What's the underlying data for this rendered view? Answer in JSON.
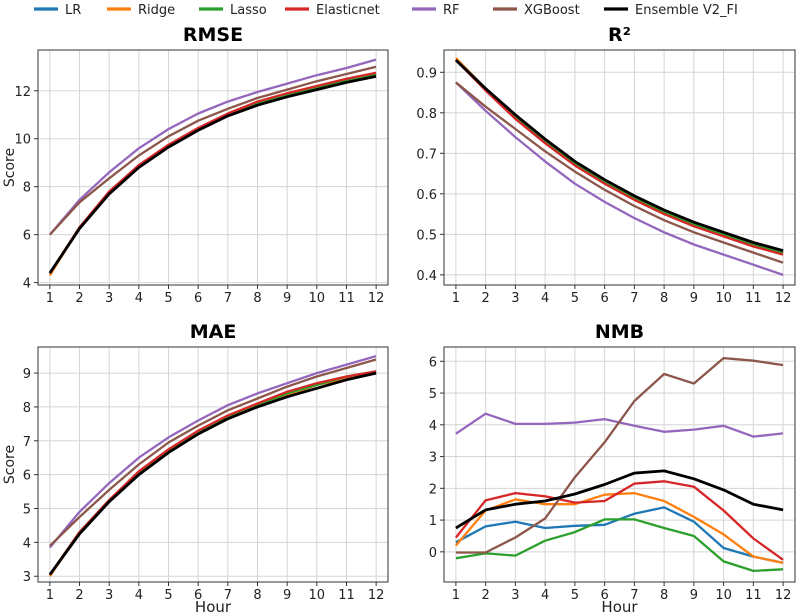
{
  "legend": [
    {
      "name": "LR",
      "color": "#1f77b4"
    },
    {
      "name": "Ridge",
      "color": "#ff7f0e"
    },
    {
      "name": "Lasso",
      "color": "#2ca02c"
    },
    {
      "name": "Elasticnet",
      "color": "#d62728"
    },
    {
      "name": "RF",
      "color": "#9467bd"
    },
    {
      "name": "XGBoost",
      "color": "#8c564b"
    },
    {
      "name": "Ensemble V2_FI",
      "color": "#000000"
    }
  ],
  "chart_data": [
    {
      "type": "line",
      "title": "RMSE",
      "xlabel": "",
      "ylabel": "Score",
      "x": [
        1,
        2,
        3,
        4,
        5,
        6,
        7,
        8,
        9,
        10,
        11,
        12
      ],
      "xlim": [
        0.6,
        12.4
      ],
      "ylim": [
        3.9,
        13.7
      ],
      "yticks": [
        4,
        6,
        8,
        10,
        12
      ],
      "grid": true,
      "series": [
        {
          "name": "LR",
          "values": [
            4.35,
            6.3,
            7.75,
            8.85,
            9.7,
            10.4,
            11.0,
            11.5,
            11.85,
            12.15,
            12.45,
            12.7
          ]
        },
        {
          "name": "Ridge",
          "values": [
            4.3,
            6.3,
            7.75,
            8.85,
            9.7,
            10.4,
            11.0,
            11.5,
            11.85,
            12.15,
            12.45,
            12.7
          ]
        },
        {
          "name": "Lasso",
          "values": [
            4.4,
            6.3,
            7.75,
            8.85,
            9.7,
            10.4,
            11.0,
            11.5,
            11.85,
            12.15,
            12.45,
            12.7
          ]
        },
        {
          "name": "Elasticnet",
          "values": [
            4.4,
            6.3,
            7.8,
            8.9,
            9.75,
            10.45,
            11.05,
            11.55,
            11.9,
            12.2,
            12.5,
            12.75
          ]
        },
        {
          "name": "RF",
          "values": [
            6.0,
            7.45,
            8.6,
            9.6,
            10.4,
            11.05,
            11.55,
            11.95,
            12.3,
            12.65,
            12.95,
            13.3
          ]
        },
        {
          "name": "XGBoost",
          "values": [
            6.0,
            7.35,
            8.35,
            9.3,
            10.1,
            10.75,
            11.25,
            11.7,
            12.05,
            12.4,
            12.7,
            13.0
          ]
        },
        {
          "name": "Ensemble V2_FI",
          "values": [
            4.4,
            6.25,
            7.7,
            8.8,
            9.65,
            10.35,
            10.95,
            11.4,
            11.75,
            12.05,
            12.35,
            12.6
          ]
        }
      ]
    },
    {
      "type": "line",
      "title": "R²",
      "xlabel": "",
      "ylabel": "",
      "x": [
        1,
        2,
        3,
        4,
        5,
        6,
        7,
        8,
        9,
        10,
        11,
        12
      ],
      "xlim": [
        0.6,
        12.4
      ],
      "ylim": [
        0.375,
        0.955
      ],
      "yticks": [
        0.4,
        0.5,
        0.6,
        0.7,
        0.8,
        0.9
      ],
      "grid": true,
      "series": [
        {
          "name": "LR",
          "values": [
            0.93,
            0.86,
            0.79,
            0.73,
            0.675,
            0.63,
            0.59,
            0.555,
            0.525,
            0.5,
            0.475,
            0.455
          ]
        },
        {
          "name": "Ridge",
          "values": [
            0.935,
            0.86,
            0.79,
            0.73,
            0.675,
            0.63,
            0.59,
            0.555,
            0.525,
            0.5,
            0.475,
            0.455
          ]
        },
        {
          "name": "Lasso",
          "values": [
            0.93,
            0.86,
            0.79,
            0.73,
            0.675,
            0.63,
            0.59,
            0.555,
            0.525,
            0.5,
            0.475,
            0.455
          ]
        },
        {
          "name": "Elasticnet",
          "values": [
            0.93,
            0.855,
            0.785,
            0.725,
            0.67,
            0.625,
            0.585,
            0.55,
            0.52,
            0.495,
            0.47,
            0.45
          ]
        },
        {
          "name": "RF",
          "values": [
            0.875,
            0.805,
            0.74,
            0.68,
            0.625,
            0.58,
            0.54,
            0.505,
            0.475,
            0.45,
            0.425,
            0.4
          ]
        },
        {
          "name": "XGBoost",
          "values": [
            0.875,
            0.815,
            0.76,
            0.705,
            0.655,
            0.61,
            0.57,
            0.535,
            0.505,
            0.48,
            0.455,
            0.43
          ]
        },
        {
          "name": "Ensemble V2_FI",
          "values": [
            0.93,
            0.86,
            0.795,
            0.735,
            0.68,
            0.635,
            0.595,
            0.56,
            0.53,
            0.505,
            0.48,
            0.46
          ]
        }
      ]
    },
    {
      "type": "line",
      "title": "MAE",
      "xlabel": "Hour",
      "ylabel": "Score",
      "x": [
        1,
        2,
        3,
        4,
        5,
        6,
        7,
        8,
        9,
        10,
        11,
        12
      ],
      "xlim": [
        0.6,
        12.4
      ],
      "ylim": [
        2.83,
        9.77
      ],
      "yticks": [
        3,
        4,
        5,
        6,
        7,
        8,
        9
      ],
      "grid": true,
      "series": [
        {
          "name": "LR",
          "values": [
            3.05,
            4.3,
            5.25,
            6.05,
            6.7,
            7.25,
            7.7,
            8.05,
            8.35,
            8.65,
            8.85,
            9.05
          ]
        },
        {
          "name": "Ridge",
          "values": [
            3.0,
            4.3,
            5.25,
            6.05,
            6.7,
            7.25,
            7.7,
            8.05,
            8.35,
            8.65,
            8.85,
            9.05
          ]
        },
        {
          "name": "Lasso",
          "values": [
            3.05,
            4.3,
            5.25,
            6.05,
            6.7,
            7.25,
            7.7,
            8.05,
            8.4,
            8.65,
            8.9,
            9.05
          ]
        },
        {
          "name": "Elasticnet",
          "values": [
            3.05,
            4.3,
            5.25,
            6.1,
            6.75,
            7.3,
            7.75,
            8.1,
            8.45,
            8.7,
            8.9,
            9.05
          ]
        },
        {
          "name": "RF",
          "values": [
            3.85,
            4.9,
            5.75,
            6.5,
            7.1,
            7.6,
            8.05,
            8.4,
            8.7,
            9.0,
            9.25,
            9.5
          ]
        },
        {
          "name": "XGBoost",
          "values": [
            3.9,
            4.75,
            5.55,
            6.3,
            6.95,
            7.45,
            7.9,
            8.25,
            8.6,
            8.9,
            9.15,
            9.4
          ]
        },
        {
          "name": "Ensemble V2_FI",
          "values": [
            3.05,
            4.25,
            5.2,
            6.0,
            6.65,
            7.2,
            7.65,
            8.0,
            8.3,
            8.55,
            8.8,
            9.0
          ]
        }
      ]
    },
    {
      "type": "line",
      "title": "NMB",
      "xlabel": "Hour",
      "ylabel": "",
      "x": [
        1,
        2,
        3,
        4,
        5,
        6,
        7,
        8,
        9,
        10,
        11,
        12
      ],
      "xlim": [
        0.6,
        12.4
      ],
      "ylim": [
        -0.95,
        6.45
      ],
      "yticks": [
        0,
        1,
        2,
        3,
        4,
        5,
        6
      ],
      "grid": true,
      "series": [
        {
          "name": "LR",
          "values": [
            0.3,
            0.8,
            0.95,
            0.75,
            0.82,
            0.85,
            1.2,
            1.4,
            0.95,
            0.12,
            -0.15,
            -0.35
          ]
        },
        {
          "name": "Ridge",
          "values": [
            0.2,
            1.3,
            1.65,
            1.5,
            1.5,
            1.8,
            1.85,
            1.6,
            1.1,
            0.55,
            -0.15,
            -0.35
          ]
        },
        {
          "name": "Lasso",
          "values": [
            -0.2,
            -0.05,
            -0.12,
            0.35,
            0.62,
            1.02,
            1.02,
            0.75,
            0.5,
            -0.3,
            -0.6,
            -0.55
          ]
        },
        {
          "name": "Elasticnet",
          "values": [
            0.45,
            1.62,
            1.85,
            1.75,
            1.55,
            1.6,
            2.15,
            2.22,
            2.05,
            1.3,
            0.42,
            -0.25
          ]
        },
        {
          "name": "RF",
          "values": [
            3.72,
            4.35,
            4.03,
            4.03,
            4.07,
            4.18,
            3.97,
            3.78,
            3.85,
            3.97,
            3.63,
            3.73
          ]
        },
        {
          "name": "XGBoost",
          "values": [
            -0.02,
            -0.02,
            0.45,
            1.05,
            2.35,
            3.45,
            4.75,
            5.6,
            5.3,
            6.1,
            6.02,
            5.88
          ]
        },
        {
          "name": "Ensemble V2_FI",
          "values": [
            0.75,
            1.32,
            1.5,
            1.6,
            1.82,
            2.12,
            2.48,
            2.55,
            2.3,
            1.95,
            1.5,
            1.32
          ]
        }
      ]
    }
  ]
}
